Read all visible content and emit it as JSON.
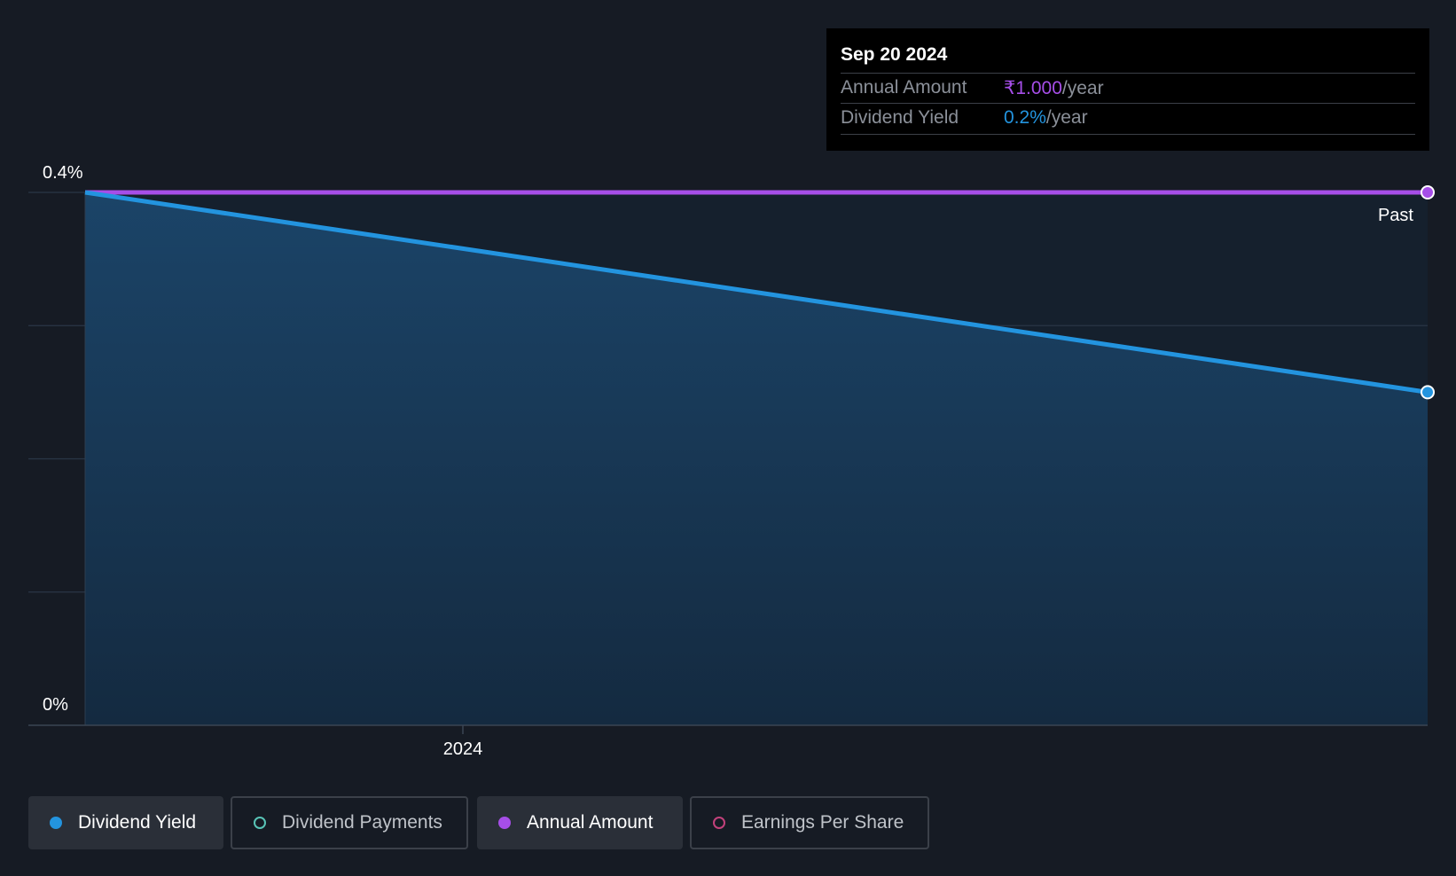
{
  "tooltip": {
    "date": "Sep 20 2024",
    "rows": [
      {
        "label": "Annual Amount",
        "value": "₹1.000",
        "unit": "/year",
        "color": "#a64ee8"
      },
      {
        "label": "Dividend Yield",
        "value": "0.2%",
        "unit": "/year",
        "color": "#2394df"
      }
    ]
  },
  "legend": [
    {
      "label": "Dividend Yield",
      "active": true,
      "color": "#2394df",
      "marker": "filled"
    },
    {
      "label": "Dividend Payments",
      "active": false,
      "color": "#58c3b6",
      "marker": "ring"
    },
    {
      "label": "Annual Amount",
      "active": true,
      "color": "#a64ee8",
      "marker": "filled"
    },
    {
      "label": "Earnings Per Share",
      "active": false,
      "color": "#c2417b",
      "marker": "ring"
    }
  ],
  "chart_data": {
    "type": "area",
    "y_tick_labels": [
      "0.4%",
      "0%"
    ],
    "x_tick_labels": [
      "2024"
    ],
    "region_label": "Past",
    "ylim": [
      0,
      0.4
    ],
    "grid": true,
    "legend_position": "bottom-left",
    "series": [
      {
        "name": "Dividend Yield",
        "color": "#2394df",
        "x": [
          "2023-08",
          "2024-09-20"
        ],
        "values": [
          0.4,
          0.25
        ]
      },
      {
        "name": "Annual Amount",
        "color": "#a64ee8",
        "x": [
          "2023-08",
          "2024-09-20"
        ],
        "values": [
          0.4,
          0.4
        ]
      }
    ]
  }
}
